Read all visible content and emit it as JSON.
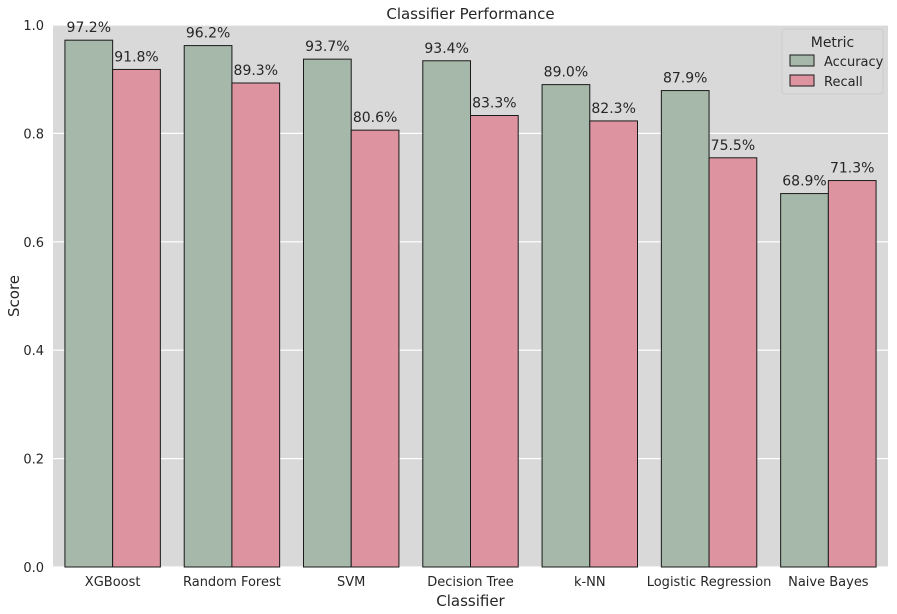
{
  "chart_data": {
    "type": "bar",
    "title": "Classifier Performance",
    "xlabel": "Classifier",
    "ylabel": "Score",
    "ylim": [
      0,
      1.0
    ],
    "yticks": [
      "0.0",
      "0.2",
      "0.4",
      "0.6",
      "0.8",
      "1.0"
    ],
    "ytick_values": [
      0,
      0.2,
      0.4,
      0.6,
      0.8,
      1.0
    ],
    "grid": true,
    "categories": [
      "XGBoost",
      "Random Forest",
      "SVM",
      "Decision Tree",
      "k-NN",
      "Logistic Regression",
      "Naive Bayes"
    ],
    "series": [
      {
        "name": "Accuracy",
        "color": "#a5b8aa",
        "values": [
          0.972,
          0.962,
          0.937,
          0.934,
          0.89,
          0.879,
          0.689
        ],
        "labels": [
          "97.2%",
          "96.2%",
          "93.7%",
          "93.4%",
          "89.0%",
          "87.9%",
          "68.9%"
        ]
      },
      {
        "name": "Recall",
        "color": "#de94a0",
        "values": [
          0.918,
          0.893,
          0.806,
          0.833,
          0.823,
          0.755,
          0.713
        ],
        "labels": [
          "91.8%",
          "89.3%",
          "80.6%",
          "83.3%",
          "82.3%",
          "75.5%",
          "71.3%"
        ]
      }
    ],
    "legend": {
      "title": "Metric",
      "placement": "top-right"
    },
    "background_color": "#d9d9d9",
    "grid_color": "#ffffff"
  }
}
